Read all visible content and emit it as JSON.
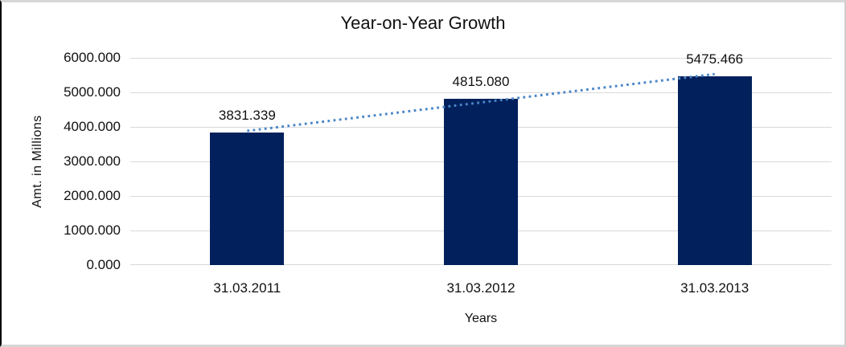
{
  "chart_data": {
    "type": "bar",
    "title": "Year-on-Year Growth",
    "xlabel": "Years",
    "ylabel": "Amt. in Millions",
    "categories": [
      "31.03.2011",
      "31.03.2012",
      "31.03.2013"
    ],
    "series": [
      {
        "name": "Amt. in Millions",
        "values": [
          3831.339,
          4815.08,
          5475.466
        ]
      }
    ],
    "data_labels": [
      "3831.339",
      "4815.080",
      "5475.466"
    ],
    "ylim": [
      0,
      6000
    ],
    "ytick_values": [
      0,
      1000,
      2000,
      3000,
      4000,
      5000,
      6000
    ],
    "ytick_labels": [
      "0.000",
      "1000.000",
      "2000.000",
      "3000.000",
      "4000.000",
      "5000.000",
      "6000.000"
    ],
    "grid": "horizontal",
    "legend": "none",
    "trendline": {
      "type": "linear",
      "style": "dotted",
      "fitted_values": [
        3885.2,
        4707.3,
        5529.4
      ]
    },
    "colors": {
      "bar": "#02215C",
      "trendline": "#4A86C8",
      "gridline": "#D9D9D9",
      "text": "#111111",
      "background": "#FFFFFF"
    }
  }
}
